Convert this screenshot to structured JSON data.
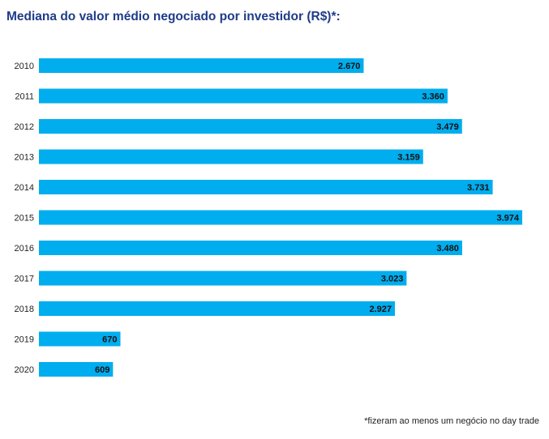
{
  "colors": {
    "bar": "#00adee",
    "title": "#1f3c88",
    "label": "#111111"
  },
  "chart_data": {
    "type": "bar",
    "orientation": "horizontal",
    "title": "Mediana do valor médio negociado por investidor (R$)*:",
    "categories": [
      "2010",
      "2011",
      "2012",
      "2013",
      "2014",
      "2015",
      "2016",
      "2017",
      "2018",
      "2019",
      "2020"
    ],
    "values": [
      2670,
      3360,
      3479,
      3159,
      3731,
      3974,
      3480,
      3023,
      2927,
      670,
      609
    ],
    "value_labels": [
      "2.670",
      "3.360",
      "3.479",
      "3.159",
      "3.731",
      "3.974",
      "3.480",
      "3.023",
      "2.927",
      "670",
      "609"
    ],
    "xlim": [
      0,
      3974
    ],
    "grid": false,
    "legend": "none",
    "footnote": "*fizeram ao menos um negócio no day trade"
  }
}
